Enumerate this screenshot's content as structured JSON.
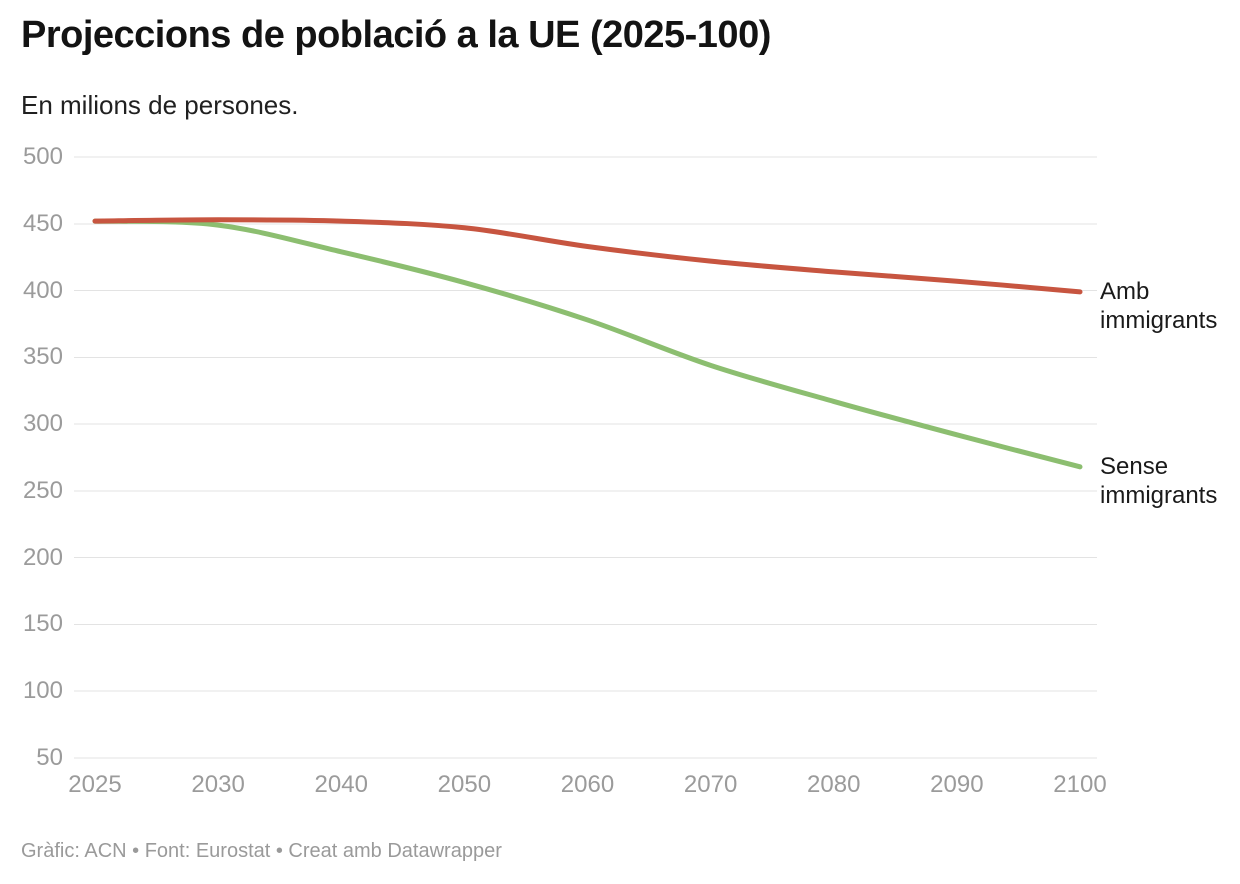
{
  "header": {
    "title": "Projeccions de població a la UE (2025-100)",
    "subtitle": "En milions de persones."
  },
  "chart_data": {
    "type": "line",
    "x": [
      2025,
      2030,
      2040,
      2050,
      2060,
      2070,
      2080,
      2090,
      2100
    ],
    "x_tick_labels": [
      "2025",
      "2030",
      "2040",
      "2050",
      "2060",
      "2070",
      "2080",
      "2090",
      "2100"
    ],
    "series": [
      {
        "name": "Amb immigrants",
        "label_lines": [
          "Amb",
          "immigrants"
        ],
        "color": "#c75540",
        "values": [
          452,
          453,
          452,
          447,
          433,
          422,
          414,
          407,
          399
        ]
      },
      {
        "name": "Sense immigrants",
        "label_lines": [
          "Sense",
          "immigrants"
        ],
        "color": "#8cbe70",
        "values": [
          452,
          449,
          429,
          406,
          378,
          344,
          317,
          292,
          268
        ]
      }
    ],
    "title": "Projeccions de població a la UE (2025-100)",
    "xlabel": "",
    "ylabel": "En milions de persones.",
    "ylim": [
      50,
      500
    ],
    "y_ticks": [
      50,
      100,
      150,
      200,
      250,
      300,
      350,
      400,
      450,
      500
    ],
    "grid": "horizontal",
    "legend_position": "line-end-labels"
  },
  "footer": {
    "credit": "Gràfic: ACN • Font: Eurostat • Creat amb Datawrapper"
  },
  "colors": {
    "background": "#ffffff",
    "grid": "#e3e3e3",
    "axis_label": "#9b9b9b",
    "series_red": "#c75540",
    "series_green": "#8cbe70",
    "title": "#131313",
    "footer": "#9a9a9a"
  }
}
